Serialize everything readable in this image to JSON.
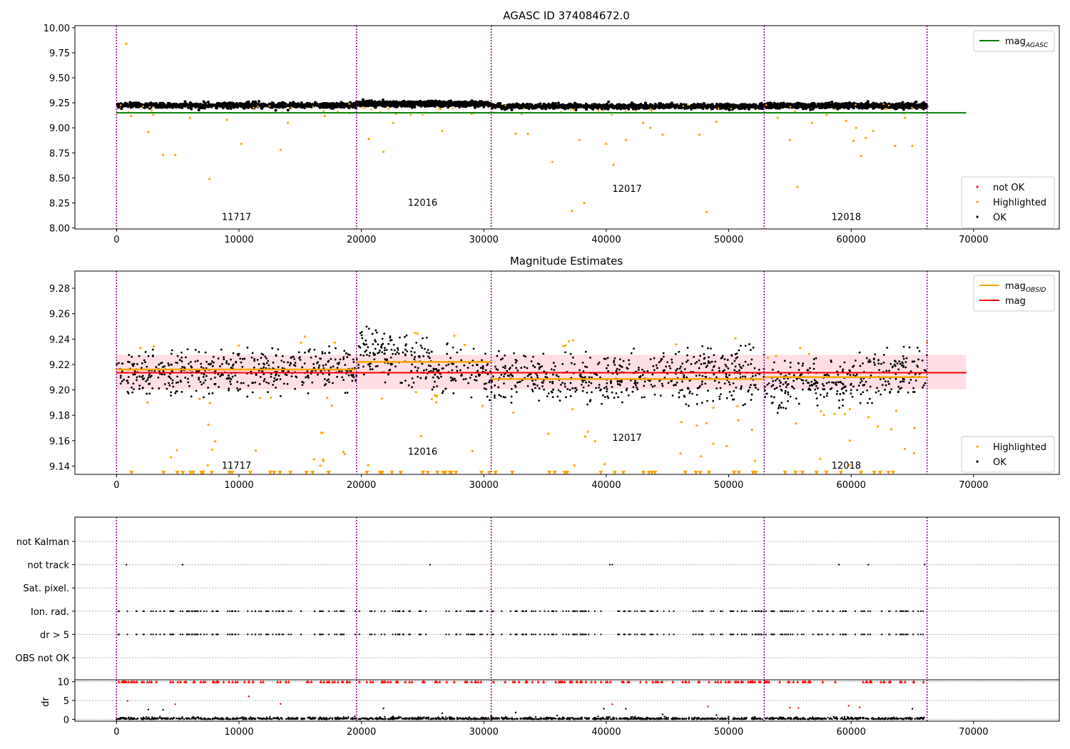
{
  "figure": {
    "title_top": "AGASC ID 374084672.0",
    "title_mid": "Magnitude Estimates"
  },
  "colors": {
    "ok": "#000000",
    "highlighted": "#ffa500",
    "not_ok": "#ff0000",
    "mag_agasc": "#008000",
    "mag_obsid": "#ffa500",
    "mag": "#ff0000",
    "obsid_line": "#800080",
    "band": "#ffc0cb"
  },
  "chart_data": [
    {
      "type": "scatter",
      "title": "AGASC ID 374084672.0",
      "xlim": [
        -3400,
        77000
      ],
      "ylim": [
        7.99,
        10.02
      ],
      "xticks": [
        0,
        10000,
        20000,
        30000,
        40000,
        50000,
        60000,
        70000
      ],
      "yticks": [
        "8.00",
        "8.25",
        "8.50",
        "8.75",
        "9.00",
        "9.25",
        "9.50",
        "9.75",
        "10.00"
      ],
      "obsid_boundaries": [
        0,
        19600,
        30600,
        52900,
        66200
      ],
      "obsid_labels": [
        {
          "label": "11717",
          "x": 9800,
          "y": 8.08
        },
        {
          "label": "12016",
          "x": 25000,
          "y": 8.22
        },
        {
          "label": "12017",
          "x": 41700,
          "y": 8.36
        },
        {
          "label": "12018",
          "x": 59600,
          "y": 8.08
        }
      ],
      "lines": [
        {
          "name": "mag_AGASC",
          "x": [
            0,
            69400
          ],
          "y": 9.15
        }
      ],
      "ok_level": [
        9.225,
        9.24,
        9.215,
        9.22,
        9.205
      ],
      "highlighted_points": [
        [
          800,
          9.84
        ],
        [
          2600,
          8.96
        ],
        [
          3800,
          8.73
        ],
        [
          4800,
          8.73
        ],
        [
          7600,
          8.49
        ],
        [
          10200,
          8.84
        ],
        [
          13400,
          8.78
        ],
        [
          1200,
          9.12
        ],
        [
          3000,
          9.13
        ],
        [
          6000,
          9.1
        ],
        [
          9000,
          9.08
        ],
        [
          14000,
          9.05
        ],
        [
          17000,
          9.12
        ],
        [
          20600,
          8.89
        ],
        [
          21800,
          8.76
        ],
        [
          22600,
          9.05
        ],
        [
          26600,
          8.97
        ],
        [
          29000,
          9.14
        ],
        [
          32600,
          8.94
        ],
        [
          33600,
          8.94
        ],
        [
          35600,
          8.66
        ],
        [
          37200,
          8.17
        ],
        [
          37800,
          8.88
        ],
        [
          38200,
          8.25
        ],
        [
          40000,
          8.84
        ],
        [
          40600,
          8.63
        ],
        [
          41600,
          8.88
        ],
        [
          43000,
          9.05
        ],
        [
          43600,
          9.0
        ],
        [
          44600,
          8.93
        ],
        [
          47600,
          8.93
        ],
        [
          48200,
          8.16
        ],
        [
          49000,
          9.06
        ],
        [
          54000,
          9.1
        ],
        [
          55000,
          8.88
        ],
        [
          55600,
          8.41
        ],
        [
          56800,
          9.05
        ],
        [
          58000,
          9.13
        ],
        [
          59600,
          9.07
        ],
        [
          60200,
          8.87
        ],
        [
          60400,
          9.0
        ],
        [
          60800,
          8.72
        ],
        [
          61200,
          8.9
        ],
        [
          61800,
          8.97
        ],
        [
          63600,
          8.82
        ],
        [
          64400,
          9.1
        ],
        [
          65000,
          8.82
        ]
      ],
      "legend": [
        {
          "label": "mag_AGASC",
          "kind": "line",
          "color": "#008000"
        },
        {
          "label": "not OK",
          "kind": "marker",
          "color": "#ff0000"
        },
        {
          "label": "Highlighted",
          "kind": "marker",
          "color": "#ffa500"
        },
        {
          "label": "OK",
          "kind": "marker",
          "color": "#000000"
        }
      ],
      "legend_placement": [
        "upper right",
        "lower right"
      ]
    },
    {
      "type": "scatter",
      "title": "Magnitude Estimates",
      "xlim": [
        -3400,
        77000
      ],
      "ylim": [
        9.1335,
        9.2935
      ],
      "xticks": [
        0,
        10000,
        20000,
        30000,
        40000,
        50000,
        60000,
        70000
      ],
      "yticks": [
        "9.14",
        "9.16",
        "9.18",
        "9.20",
        "9.22",
        "9.24",
        "9.26",
        "9.28"
      ],
      "obsid_boundaries": [
        0,
        19600,
        30600,
        52900,
        66200
      ],
      "obsid_labels": [
        {
          "label": "11717",
          "x": 9800,
          "y": 9.138
        },
        {
          "label": "12016",
          "x": 25000,
          "y": 9.149
        },
        {
          "label": "12017",
          "x": 41700,
          "y": 9.16
        },
        {
          "label": "12018",
          "x": 59600,
          "y": 9.138
        }
      ],
      "mag": 9.2135,
      "mag_band": [
        9.2005,
        9.2275
      ],
      "mag_obsid": [
        {
          "x0": 0,
          "x1": 19600,
          "y": 9.216
        },
        {
          "x0": 19600,
          "x1": 30600,
          "y": 9.222
        },
        {
          "x0": 30600,
          "x1": 52900,
          "y": 9.2085
        },
        {
          "x0": 52900,
          "x1": 66200,
          "y": 9.21
        }
      ],
      "ok_cloud": [
        {
          "x0": 0,
          "x1": 19600,
          "center_start": 9.212,
          "center_end": 9.216,
          "sd": 0.009
        },
        {
          "x0": 19600,
          "x1": 30600,
          "center_start": 9.232,
          "center_end": 9.208,
          "sd": 0.01
        },
        {
          "x0": 30600,
          "x1": 52900,
          "center_start": 9.208,
          "center_end": 9.212,
          "sd": 0.011
        },
        {
          "x0": 52900,
          "x1": 66200,
          "center_start": 9.2,
          "center_end": 9.215,
          "sd": 0.01
        }
      ],
      "highlighted_low_markers_y": 9.1347,
      "legend": [
        {
          "label": "mag_OBSID",
          "kind": "line",
          "color": "#ffa500"
        },
        {
          "label": "mag",
          "kind": "line",
          "color": "#ff0000"
        },
        {
          "label": "Highlighted",
          "kind": "marker",
          "color": "#ffa500"
        },
        {
          "label": "OK",
          "kind": "marker",
          "color": "#000000"
        }
      ],
      "legend_placement": [
        "upper right",
        "lower right"
      ]
    },
    {
      "type": "scatter",
      "title": "",
      "xlim": [
        -3400,
        77000
      ],
      "flag_rows": [
        "OBS not OK",
        "dr > 5",
        "Ion. rad.",
        "Sat. pixel.",
        "not track",
        "not Kalman"
      ],
      "not_track_x": [
        800,
        5400,
        25600,
        40300,
        40500,
        59000,
        61400,
        66000
      ],
      "obsid_boundaries": [
        0,
        19600,
        30600,
        52900,
        66200
      ]
    },
    {
      "type": "scatter",
      "title": "",
      "ylabel": "dr",
      "xlim": [
        -3400,
        77000
      ],
      "ylim": [
        -0.5,
        10.5
      ],
      "yticks": [
        "0",
        "5",
        "10"
      ],
      "xticks": [
        0,
        10000,
        20000,
        30000,
        40000,
        50000,
        60000,
        70000
      ],
      "clipped_value": 10,
      "red_outliers": [
        [
          900,
          4.9
        ],
        [
          4800,
          4.0
        ],
        [
          10800,
          6.1
        ],
        [
          13400,
          4.1
        ],
        [
          40500,
          4.0
        ],
        [
          48300,
          3.4
        ],
        [
          55000,
          3.1
        ],
        [
          55700,
          3.0
        ],
        [
          59800,
          3.6
        ],
        [
          60700,
          3.2
        ]
      ],
      "black_outliers": [
        [
          2600,
          2.6
        ],
        [
          3800,
          2.5
        ],
        [
          21800,
          2.9
        ],
        [
          26600,
          1.6
        ],
        [
          32600,
          1.8
        ],
        [
          39800,
          2.8
        ],
        [
          41600,
          2.8
        ],
        [
          44600,
          1.3
        ],
        [
          49000,
          1.1
        ],
        [
          65000,
          2.8
        ],
        [
          50000,
          0.7
        ],
        [
          36000,
          1.0
        ]
      ],
      "obsid_boundaries": [
        0,
        19600,
        30600,
        52900,
        66200
      ]
    }
  ]
}
